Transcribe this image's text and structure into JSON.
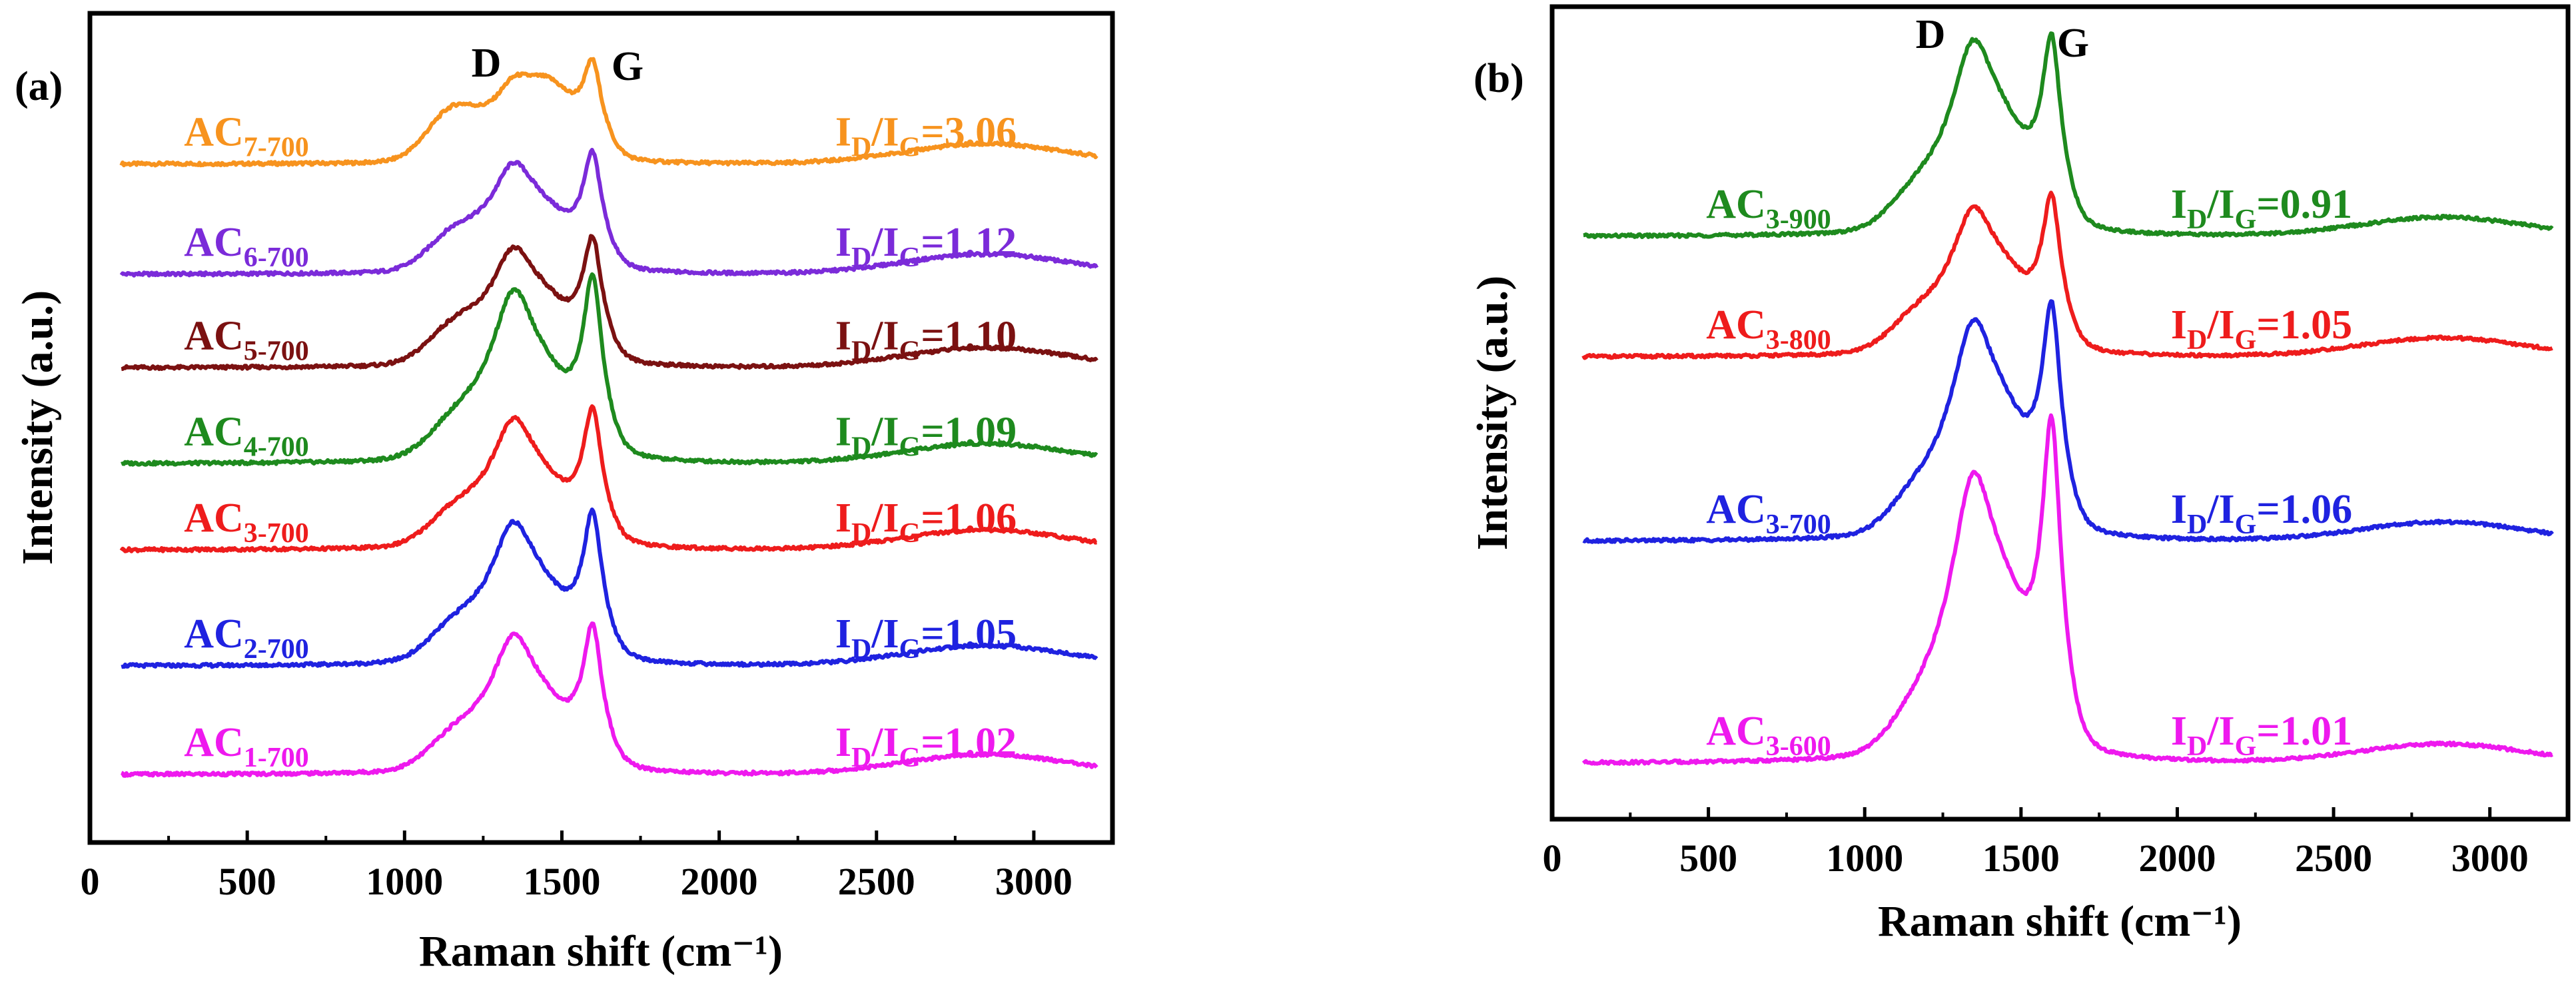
{
  "chart_data": [
    {
      "panel": "(a)",
      "type": "line",
      "xlabel": "Raman shift (cm⁻¹)",
      "ylabel": "Intensity (a.u.)",
      "xlim": [
        0,
        3250
      ],
      "x_ticks": [
        0,
        500,
        1000,
        1500,
        2000,
        2500,
        3000
      ],
      "grid": false,
      "peak_labels": [
        {
          "text": "D",
          "x": 1350
        },
        {
          "text": "G",
          "x": 1600
        }
      ],
      "series": [
        {
          "name": "AC",
          "sub": "7-700",
          "color": "#f7931e",
          "ratio": "3.06",
          "offset": 0.828,
          "d_amp": 0.092,
          "g_amp": 0.11,
          "shoulder": 0.055,
          "valley_fill": 0.7
        },
        {
          "name": "AC",
          "sub": "6-700",
          "color": "#7b2bd9",
          "ratio": "1.12",
          "offset": 0.69,
          "d_amp": 0.13,
          "g_amp": 0.135,
          "shoulder": 0.035,
          "valley_fill": 0.25
        },
        {
          "name": "AC",
          "sub": "5-700",
          "color": "#7b1111",
          "ratio": "1.10",
          "offset": 0.573,
          "d_amp": 0.14,
          "g_amp": 0.145,
          "shoulder": 0.035,
          "valley_fill": 0.25
        },
        {
          "name": "AC",
          "sub": "4-700",
          "color": "#1e8a1e",
          "ratio": "1.09",
          "offset": 0.453,
          "d_amp": 0.205,
          "g_amp": 0.21,
          "shoulder": 0.03,
          "valley_fill": 0.2
        },
        {
          "name": "AC",
          "sub": "3-700",
          "color": "#ee1c1c",
          "ratio": "1.06",
          "offset": 0.345,
          "d_amp": 0.155,
          "g_amp": 0.158,
          "shoulder": 0.03,
          "valley_fill": 0.2
        },
        {
          "name": "AC",
          "sub": "2-700",
          "color": "#1f22e0",
          "ratio": "1.05",
          "offset": 0.2,
          "d_amp": 0.17,
          "g_amp": 0.172,
          "shoulder": 0.03,
          "valley_fill": 0.2
        },
        {
          "name": "AC",
          "sub": "1-700",
          "color": "#ee19ee",
          "ratio": "1.02",
          "offset": 0.064,
          "d_amp": 0.165,
          "g_amp": 0.167,
          "shoulder": 0.03,
          "valley_fill": 0.2
        }
      ]
    },
    {
      "panel": "(b)",
      "type": "line",
      "xlabel": "Raman shift (cm⁻¹)",
      "ylabel": "Intensity (a.u.)",
      "xlim": [
        0,
        3250
      ],
      "x_ticks": [
        0,
        500,
        1000,
        1500,
        2000,
        2500,
        3000
      ],
      "grid": false,
      "peak_labels": [
        {
          "text": "D",
          "x": 1350
        },
        {
          "text": "G",
          "x": 1600
        }
      ],
      "series": [
        {
          "name": "AC",
          "sub": "3-900",
          "color": "#1e8a1e",
          "ratio": "0.91",
          "offset": 0.73,
          "d_amp": 0.245,
          "g_amp": 0.235,
          "shoulder": 0.03,
          "valley_fill": 0.25
        },
        {
          "name": "AC",
          "sub": "3-800",
          "color": "#ee1c1c",
          "ratio": "1.05",
          "offset": 0.57,
          "d_amp": 0.185,
          "g_amp": 0.19,
          "shoulder": 0.03,
          "valley_fill": 0.25
        },
        {
          "name": "AC",
          "sub": "3-700",
          "color": "#1f22e0",
          "ratio": "1.06",
          "offset": 0.325,
          "d_amp": 0.275,
          "g_amp": 0.28,
          "shoulder": 0.03,
          "valley_fill": 0.25
        },
        {
          "name": "AC",
          "sub": "3-600",
          "color": "#ee19ee",
          "ratio": "1.01",
          "offset": 0.03,
          "d_amp": 0.36,
          "g_amp": 0.41,
          "shoulder": 0.03,
          "valley_fill": 0.25
        }
      ]
    }
  ]
}
